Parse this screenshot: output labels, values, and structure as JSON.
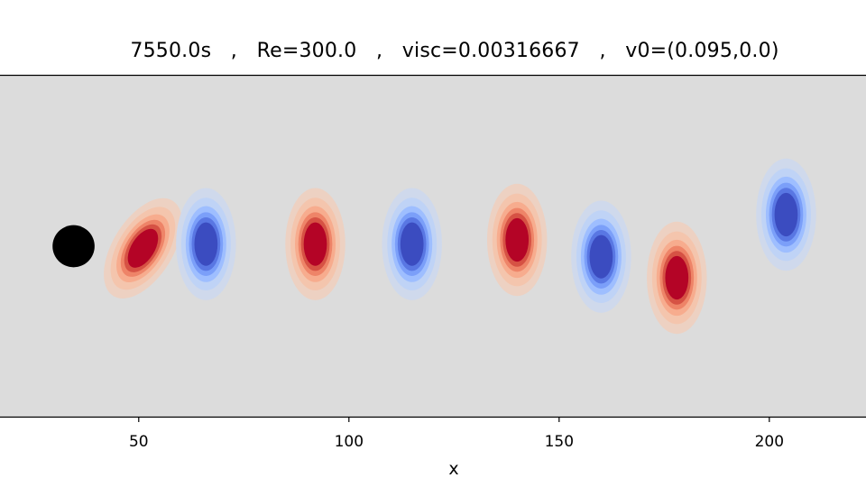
{
  "chart_data": {
    "type": "heatmap",
    "title": "7550.0s   ,   Re=300.0   ,   visc=0.00316667   ,   v0=(0.095,0.0)",
    "xlabel": "x",
    "ylabel": "",
    "xlim": [
      17,
      223
    ],
    "xticks": [
      50,
      100,
      150,
      200
    ],
    "ylim": [
      0,
      81
    ],
    "colormap": "coolwarm",
    "colors": {
      "background": "#dcdcdc",
      "positive_strong": "#b40426",
      "negative_strong": "#3b4cc0",
      "obstacle": "#000000"
    },
    "obstacle": {
      "shape": "circle",
      "cx": 34.5,
      "cy": 40.5,
      "r": 5
    },
    "vortices": [
      {
        "x": 51,
        "y": 40,
        "strength": 1.0
      },
      {
        "x": 66,
        "y": 41,
        "strength": -1.0
      },
      {
        "x": 92,
        "y": 41,
        "strength": 1.0
      },
      {
        "x": 115,
        "y": 41,
        "strength": -1.0
      },
      {
        "x": 140,
        "y": 42,
        "strength": 1.0
      },
      {
        "x": 160,
        "y": 38,
        "strength": -1.0
      },
      {
        "x": 178,
        "y": 33,
        "strength": 1.0
      },
      {
        "x": 204,
        "y": 48,
        "strength": -1.0
      }
    ]
  }
}
